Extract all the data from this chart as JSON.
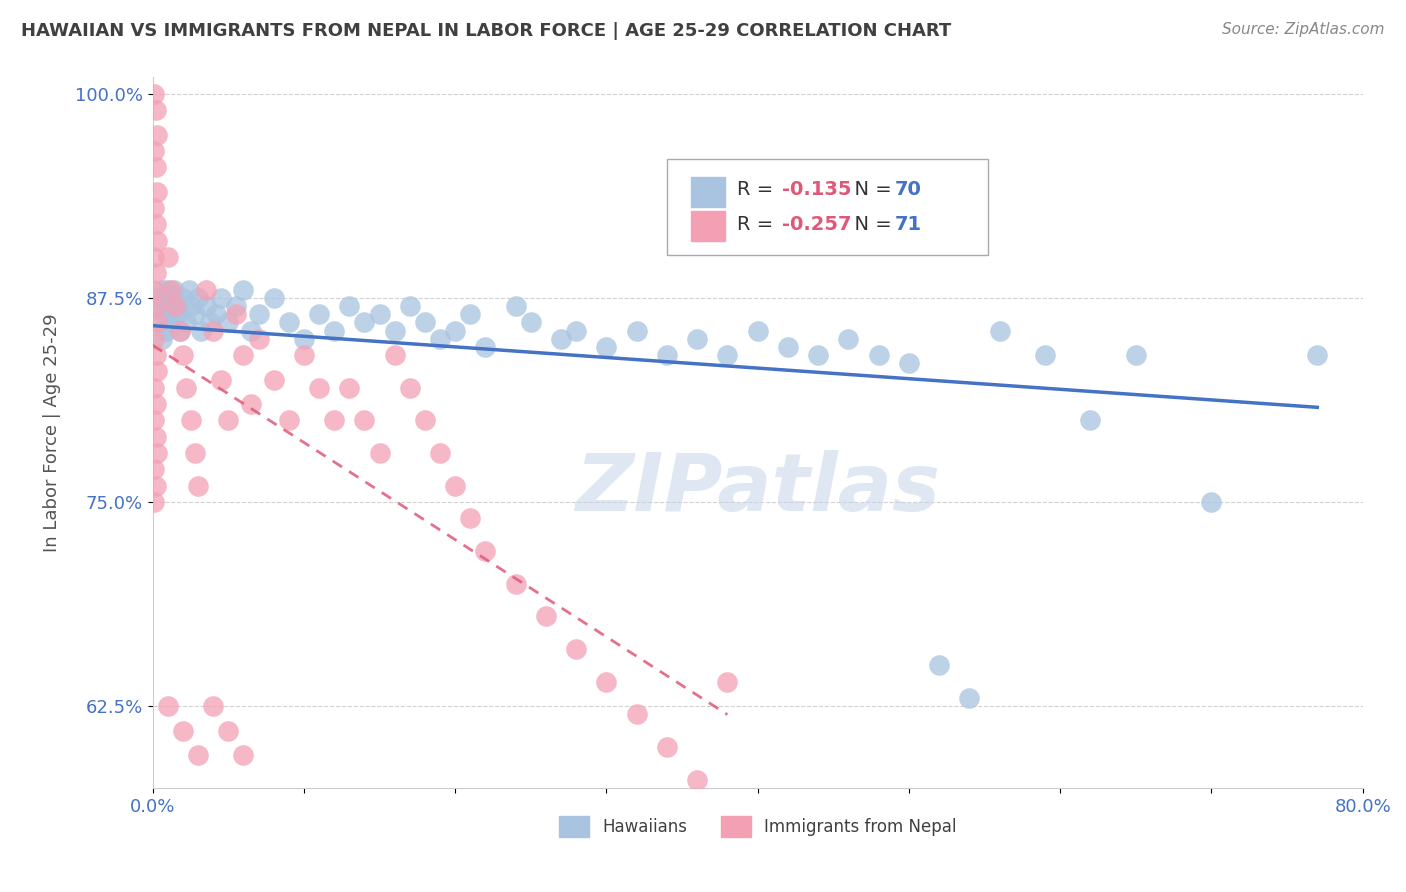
{
  "title": "HAWAIIAN VS IMMIGRANTS FROM NEPAL IN LABOR FORCE | AGE 25-29 CORRELATION CHART",
  "source": "Source: ZipAtlas.com",
  "ylabel": "In Labor Force | Age 25-29",
  "xlim": [
    0.0,
    0.8
  ],
  "ylim": [
    0.575,
    1.01
  ],
  "yticks": [
    0.625,
    0.75,
    0.875,
    1.0
  ],
  "ytick_labels": [
    "62.5%",
    "75.0%",
    "87.5%",
    "100.0%"
  ],
  "hawaiians_R": -0.135,
  "hawaiians_N": 70,
  "nepal_R": -0.257,
  "nepal_N": 71,
  "hawaii_color": "#a8c4e0",
  "nepal_color": "#f4a0b4",
  "hawaii_line_color": "#4472c4",
  "nepal_line_color": "#e05878",
  "background_color": "#ffffff",
  "grid_color": "#cccccc",
  "title_color": "#404040",
  "axis_label_color": "#555555",
  "legend_R_color": "#e05878",
  "legend_N_color": "#4472c4",
  "watermark": "ZIPatlas",
  "hawaii_x": [
    0.003,
    0.005,
    0.007,
    0.004,
    0.006,
    0.008,
    0.01,
    0.009,
    0.011,
    0.013,
    0.012,
    0.015,
    0.014,
    0.016,
    0.018,
    0.017,
    0.02,
    0.022,
    0.025,
    0.024,
    0.028,
    0.03,
    0.032,
    0.035,
    0.038,
    0.042,
    0.045,
    0.05,
    0.055,
    0.06,
    0.065,
    0.07,
    0.08,
    0.09,
    0.1,
    0.11,
    0.12,
    0.13,
    0.14,
    0.15,
    0.16,
    0.17,
    0.18,
    0.19,
    0.2,
    0.21,
    0.22,
    0.24,
    0.25,
    0.27,
    0.28,
    0.3,
    0.32,
    0.34,
    0.36,
    0.38,
    0.4,
    0.42,
    0.44,
    0.46,
    0.48,
    0.5,
    0.52,
    0.54,
    0.56,
    0.59,
    0.62,
    0.65,
    0.7,
    0.77
  ],
  "hawaii_y": [
    0.875,
    0.86,
    0.88,
    0.87,
    0.85,
    0.865,
    0.88,
    0.855,
    0.87,
    0.86,
    0.875,
    0.865,
    0.88,
    0.87,
    0.855,
    0.865,
    0.875,
    0.86,
    0.87,
    0.88,
    0.865,
    0.875,
    0.855,
    0.87,
    0.86,
    0.865,
    0.875,
    0.86,
    0.87,
    0.88,
    0.855,
    0.865,
    0.875,
    0.86,
    0.85,
    0.865,
    0.855,
    0.87,
    0.86,
    0.865,
    0.855,
    0.87,
    0.86,
    0.85,
    0.855,
    0.865,
    0.845,
    0.87,
    0.86,
    0.85,
    0.855,
    0.845,
    0.855,
    0.84,
    0.85,
    0.84,
    0.855,
    0.845,
    0.84,
    0.85,
    0.84,
    0.835,
    0.65,
    0.63,
    0.855,
    0.84,
    0.8,
    0.84,
    0.75,
    0.84
  ],
  "nepal_x": [
    0.001,
    0.002,
    0.003,
    0.001,
    0.002,
    0.003,
    0.001,
    0.002,
    0.003,
    0.001,
    0.002,
    0.001,
    0.002,
    0.003,
    0.001,
    0.002,
    0.003,
    0.001,
    0.002,
    0.001,
    0.002,
    0.003,
    0.001,
    0.002,
    0.001,
    0.01,
    0.012,
    0.015,
    0.018,
    0.02,
    0.022,
    0.025,
    0.028,
    0.03,
    0.035,
    0.04,
    0.045,
    0.05,
    0.055,
    0.06,
    0.065,
    0.07,
    0.08,
    0.09,
    0.1,
    0.11,
    0.12,
    0.13,
    0.14,
    0.15,
    0.16,
    0.17,
    0.18,
    0.19,
    0.2,
    0.21,
    0.22,
    0.24,
    0.26,
    0.28,
    0.3,
    0.32,
    0.34,
    0.36,
    0.38,
    0.01,
    0.02,
    0.03,
    0.04,
    0.05,
    0.06
  ],
  "nepal_y": [
    1.0,
    0.99,
    0.975,
    0.965,
    0.955,
    0.94,
    0.93,
    0.92,
    0.91,
    0.9,
    0.89,
    0.88,
    0.87,
    0.86,
    0.85,
    0.84,
    0.83,
    0.82,
    0.81,
    0.8,
    0.79,
    0.78,
    0.77,
    0.76,
    0.75,
    0.9,
    0.88,
    0.87,
    0.855,
    0.84,
    0.82,
    0.8,
    0.78,
    0.76,
    0.88,
    0.855,
    0.825,
    0.8,
    0.865,
    0.84,
    0.81,
    0.85,
    0.825,
    0.8,
    0.84,
    0.82,
    0.8,
    0.82,
    0.8,
    0.78,
    0.84,
    0.82,
    0.8,
    0.78,
    0.76,
    0.74,
    0.72,
    0.7,
    0.68,
    0.66,
    0.64,
    0.62,
    0.6,
    0.58,
    0.64,
    0.625,
    0.61,
    0.595,
    0.625,
    0.61,
    0.595
  ]
}
